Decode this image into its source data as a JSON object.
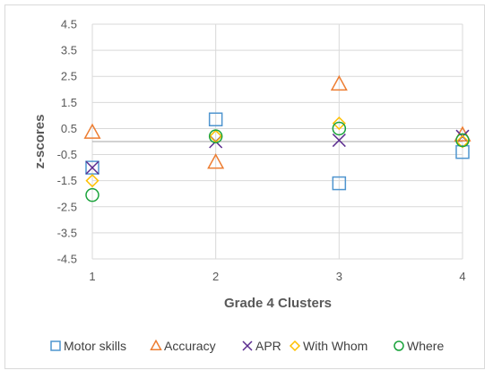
{
  "chart_data": {
    "type": "scatter",
    "xlabel": "Grade 4 Clusters",
    "ylabel": "z-scores",
    "xlim": [
      1,
      4
    ],
    "ylim": [
      -4.5,
      4.5
    ],
    "x_ticks": [
      "1",
      "2",
      "3",
      "4"
    ],
    "y_ticks": [
      "4.5",
      "3.5",
      "2.5",
      "1.5",
      "0.5",
      "-0.5",
      "-1.5",
      "-2.5",
      "-3.5",
      "-4.5"
    ],
    "grid": "horizontal",
    "legend_position": "bottom",
    "x": [
      1,
      2,
      3,
      4
    ],
    "series": [
      {
        "name": "Motor skills",
        "marker": "square",
        "color": "#4f95cf",
        "values": [
          -1.0,
          0.85,
          -1.6,
          -0.4
        ]
      },
      {
        "name": "Accuracy",
        "marker": "triangle",
        "color": "#ed7d31",
        "values": [
          0.35,
          -0.8,
          2.2,
          0.25
        ]
      },
      {
        "name": "APR",
        "marker": "x",
        "color": "#5b2c8f",
        "values": [
          -1.0,
          0.0,
          0.05,
          0.2
        ]
      },
      {
        "name": "With Whom",
        "marker": "diamond",
        "color": "#ffc000",
        "values": [
          -1.5,
          0.2,
          0.7,
          0.0
        ]
      },
      {
        "name": "Where",
        "marker": "circle",
        "color": "#1aa33b",
        "values": [
          -2.05,
          0.2,
          0.5,
          0.05
        ]
      }
    ]
  }
}
